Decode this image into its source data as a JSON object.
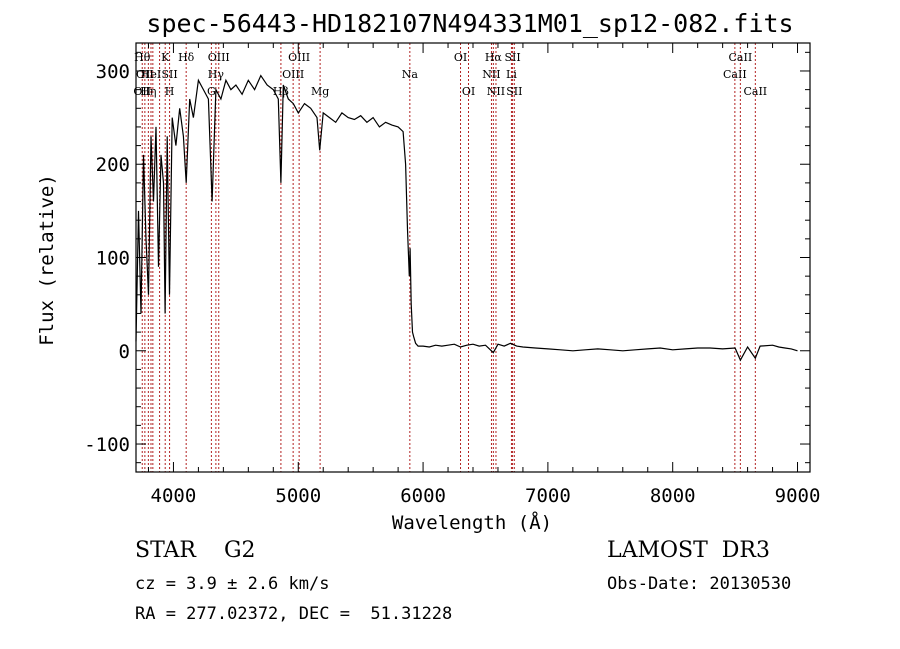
{
  "chart_data": {
    "type": "line",
    "title": "spec-56443-HD182107N494331M01_sp12-082.fits",
    "xlabel": "Wavelength (Å)",
    "ylabel": "Flux (relative)",
    "xlim": [
      3700,
      9100
    ],
    "ylim": [
      -130,
      330
    ],
    "x_ticks": [
      "4000",
      "5000",
      "6000",
      "7000",
      "8000",
      "9000"
    ],
    "y_ticks": [
      "-100",
      "0",
      "100",
      "200",
      "300"
    ],
    "x_tick_values": [
      4000,
      5000,
      6000,
      7000,
      8000,
      9000
    ],
    "y_tick_values": [
      -100,
      0,
      100,
      200,
      300
    ],
    "line_color": "#000000",
    "marker_color": "#b22222",
    "series": [
      {
        "name": "flux",
        "x": [
          3700,
          3720,
          3740,
          3760,
          3780,
          3800,
          3820,
          3840,
          3860,
          3880,
          3900,
          3920,
          3933,
          3950,
          3968,
          3990,
          4020,
          4050,
          4080,
          4102,
          4130,
          4160,
          4200,
          4240,
          4280,
          4310,
          4340,
          4380,
          4420,
          4460,
          4500,
          4550,
          4600,
          4650,
          4700,
          4750,
          4800,
          4840,
          4861,
          4880,
          4920,
          4960,
          5000,
          5050,
          5100,
          5150,
          5172,
          5200,
          5250,
          5300,
          5350,
          5400,
          5450,
          5500,
          5550,
          5600,
          5650,
          5700,
          5750,
          5800,
          5840,
          5860,
          5875,
          5890,
          5896,
          5905,
          5915,
          5925,
          5940,
          5960,
          6000,
          6050,
          6100,
          6150,
          6200,
          6250,
          6300,
          6350,
          6400,
          6450,
          6500,
          6563,
          6600,
          6650,
          6700,
          6750,
          6800,
          6900,
          7000,
          7100,
          7200,
          7300,
          7400,
          7500,
          7600,
          7700,
          7800,
          7900,
          8000,
          8100,
          8200,
          8300,
          8400,
          8500,
          8542,
          8600,
          8662,
          8700,
          8800,
          8850,
          8900,
          8950,
          9000
        ],
        "y": [
          10,
          150,
          40,
          210,
          120,
          60,
          230,
          160,
          240,
          90,
          210,
          180,
          40,
          230,
          60,
          250,
          220,
          260,
          230,
          180,
          270,
          250,
          290,
          280,
          270,
          160,
          280,
          270,
          290,
          280,
          285,
          275,
          290,
          280,
          295,
          285,
          280,
          270,
          180,
          285,
          270,
          265,
          255,
          265,
          260,
          250,
          215,
          255,
          250,
          245,
          255,
          250,
          248,
          252,
          245,
          250,
          240,
          245,
          242,
          240,
          235,
          200,
          130,
          80,
          110,
          50,
          20,
          15,
          8,
          5,
          5,
          4,
          6,
          5,
          6,
          7,
          4,
          6,
          7,
          5,
          6,
          -2,
          7,
          5,
          8,
          5,
          4,
          3,
          2,
          1,
          0,
          1,
          2,
          1,
          0,
          1,
          2,
          3,
          1,
          2,
          3,
          3,
          2,
          3,
          -10,
          4,
          -8,
          5,
          6,
          4,
          3,
          2,
          0
        ]
      }
    ],
    "spectral_lines": [
      {
        "w": 3750,
        "top": "Hθ",
        "mid": "",
        "bot": "OII"
      },
      {
        "w": 3771,
        "top": "",
        "mid": "OII",
        "bot": ""
      },
      {
        "w": 3799,
        "top": "",
        "mid": "",
        "bot": "Hη"
      },
      {
        "w": 3820,
        "top": "",
        "mid": "HeI",
        "bot": ""
      },
      {
        "w": 3835,
        "top": "",
        "mid": "",
        "bot": ""
      },
      {
        "w": 3889,
        "top": "",
        "mid": "",
        "bot": ""
      },
      {
        "w": 3934,
        "top": "K",
        "mid": "",
        "bot": ""
      },
      {
        "w": 3969,
        "top": "",
        "mid": "SII",
        "bot": "H"
      },
      {
        "w": 4102,
        "top": "Hδ",
        "mid": "",
        "bot": ""
      },
      {
        "w": 4304,
        "top": "",
        "mid": "",
        "bot": "G"
      },
      {
        "w": 4340,
        "top": "",
        "mid": "Hγ",
        "bot": ""
      },
      {
        "w": 4363,
        "top": "OIII",
        "mid": "",
        "bot": ""
      },
      {
        "w": 4861,
        "top": "",
        "mid": "",
        "bot": "Hβ"
      },
      {
        "w": 4959,
        "top": "",
        "mid": "OIII",
        "bot": ""
      },
      {
        "w": 5007,
        "top": "OIII",
        "mid": "",
        "bot": ""
      },
      {
        "w": 5175,
        "top": "",
        "mid": "",
        "bot": "Mg"
      },
      {
        "w": 5894,
        "top": "",
        "mid": "Na",
        "bot": ""
      },
      {
        "w": 6300,
        "top": "OI",
        "mid": "",
        "bot": ""
      },
      {
        "w": 6364,
        "top": "",
        "mid": "",
        "bot": "OI"
      },
      {
        "w": 6548,
        "top": "",
        "mid": "NII",
        "bot": ""
      },
      {
        "w": 6563,
        "top": "Hα",
        "mid": "",
        "bot": ""
      },
      {
        "w": 6584,
        "top": "",
        "mid": "",
        "bot": "NII"
      },
      {
        "w": 6708,
        "top": "",
        "mid": "Li",
        "bot": ""
      },
      {
        "w": 6717,
        "top": "SII",
        "mid": "",
        "bot": ""
      },
      {
        "w": 6731,
        "top": "",
        "mid": "",
        "bot": "SII"
      },
      {
        "w": 8498,
        "top": "",
        "mid": "CaII",
        "bot": ""
      },
      {
        "w": 8542,
        "top": "CaII",
        "mid": "",
        "bot": ""
      },
      {
        "w": 8662,
        "top": "",
        "mid": "",
        "bot": "CaII"
      }
    ]
  },
  "info": {
    "class": "STAR    G2",
    "survey": "LAMOST  DR3",
    "cz": "cz = 3.9 ± 2.6 km/s",
    "obs_date": "Obs-Date: 20130530",
    "coords": "RA = 277.02372, DEC =  51.31228"
  }
}
